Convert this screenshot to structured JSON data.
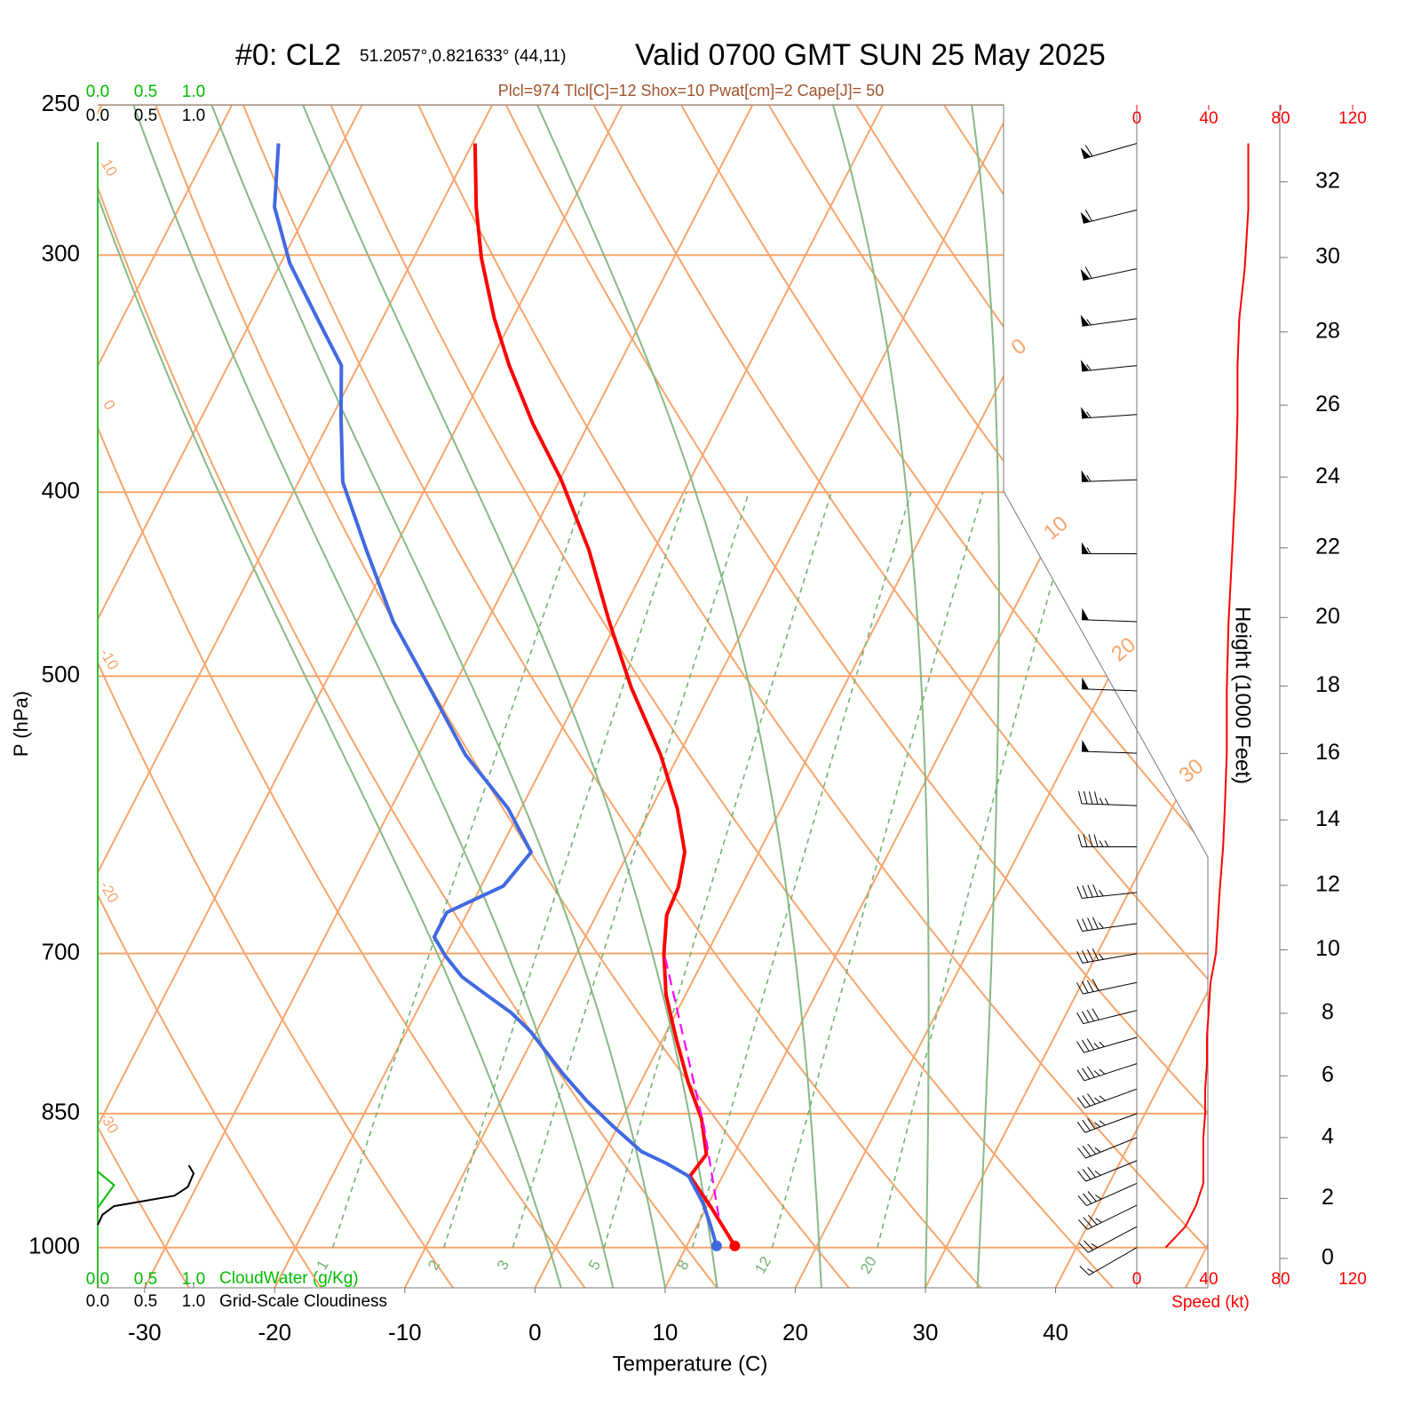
{
  "chart_data": {
    "type": "skewt",
    "title": "#0: CL2",
    "location": "51.2057°,0.821633° (44,11)",
    "valid": "Valid 0700 GMT SUN 25 May 2025",
    "stats": "Plcl=974 Tlcl[C]=12 Shox=10 Pwat[cm]=2 Cape[J]= 50",
    "xlabel": "Temperature (C)",
    "ylabel": "P (hPa)",
    "xlim": [
      -33.6,
      51.7
    ],
    "ylim": [
      1050,
      250
    ],
    "xticks": [
      -30,
      -20,
      -10,
      0,
      10,
      20,
      30,
      40
    ],
    "yticks": [
      250,
      300,
      400,
      500,
      700,
      850,
      1000
    ],
    "isotherms": [
      -80,
      -70,
      -60,
      -50,
      -40,
      -30,
      -20,
      -10,
      0,
      10,
      20,
      30,
      40,
      50
    ],
    "isotherm_labels": [
      0,
      10,
      20,
      30
    ],
    "dry_adiabats": [
      -40,
      -30,
      -20,
      -10,
      0,
      10,
      20,
      30,
      40,
      50,
      60,
      70,
      80,
      90,
      100,
      110,
      120
    ],
    "moist_adiabats": [
      2,
      6,
      10,
      14,
      22,
      30,
      34
    ],
    "mixing_ratios": [
      1,
      2,
      3,
      5,
      8,
      12,
      20
    ],
    "series": [
      {
        "color": "#ff0000",
        "surface_marker": true,
        "pressure": [
          262,
          283,
          301,
          324,
          343,
          368,
          394,
          429,
          468,
          507,
          550,
          587,
          619,
          646,
          668,
          700,
          736,
          776,
          819,
          855,
          893,
          917,
          953,
          998
        ],
        "values": [
          -49.8,
          -47.2,
          -44.8,
          -41.4,
          -38.4,
          -34.3,
          -29.9,
          -25.0,
          -20.6,
          -16.3,
          -11.4,
          -8.0,
          -5.7,
          -4.8,
          -4.6,
          -3.3,
          -1.5,
          1.0,
          3.7,
          6.1,
          7.9,
          7.5,
          10.4,
          13.7
        ]
      },
      {
        "color": "#4169e1",
        "surface_marker": true,
        "pressure": [
          262,
          283,
          303,
          324,
          343,
          365,
          395,
          429,
          468,
          507,
          550,
          587,
          619,
          645,
          666,
          686,
          702,
          720,
          736,
          752,
          770,
          810,
          837,
          863,
          890,
          903,
          917,
          948,
          973,
          998
        ],
        "values": [
          -64.9,
          -62.7,
          -59.3,
          -55.0,
          -51.3,
          -49.3,
          -46.6,
          -42.1,
          -37.2,
          -31.8,
          -26.4,
          -21.0,
          -17.5,
          -18.3,
          -21.6,
          -21.6,
          -20.0,
          -17.9,
          -15.3,
          -12.7,
          -10.4,
          -6.3,
          -3.4,
          -0.4,
          2.8,
          5.2,
          7.4,
          9.6,
          11.0,
          12.3
        ]
      },
      {
        "color": "#ff00ff",
        "dashed": true,
        "pressure": [
          704,
          865,
          963
        ],
        "values": [
          -3.0,
          6.7,
          11.3
        ]
      }
    ],
    "wind": {
      "xlabel": "Speed (kt)",
      "color": "#ff0000",
      "xlim": [
        0,
        120
      ],
      "xticks": [
        0,
        40,
        80,
        120
      ],
      "pressure": [
        262,
        284,
        305,
        324,
        343,
        364,
        394,
        431,
        468,
        509,
        549,
        585,
        615,
        650,
        675,
        700,
        725,
        750,
        775,
        800,
        825,
        850,
        875,
        900,
        925,
        950,
        975,
        1000
      ],
      "direction": [
        254,
        256,
        258,
        262,
        264,
        266,
        268,
        270,
        272,
        272,
        272,
        272,
        270,
        264,
        262,
        260,
        258,
        256,
        254,
        252,
        250,
        250,
        248,
        248,
        246,
        244,
        242,
        240
      ],
      "speed": [
        62,
        62,
        60,
        57,
        56,
        56,
        55,
        53,
        51,
        50,
        50,
        49,
        48,
        46,
        45,
        44,
        41,
        40,
        39,
        39,
        38,
        38,
        37,
        37,
        37,
        33,
        27,
        16
      ]
    },
    "height": {
      "label": "Height (1000 Feet)",
      "ticks": [
        0,
        2,
        4,
        6,
        8,
        10,
        12,
        14,
        16,
        18,
        20,
        22,
        24,
        26,
        28,
        30,
        32
      ]
    },
    "cloud": {
      "xlim": [
        0,
        1
      ],
      "xticks": [
        {
          "value": 0,
          "label": "0.0"
        },
        {
          "value": 0.5,
          "label": "0.5"
        },
        {
          "value": 1,
          "label": "1.0"
        }
      ],
      "water": {
        "label": "CloudWater (g/Kg)",
        "color": "#00bb00",
        "pressure": [
          912,
          927,
          953
        ],
        "values": [
          0,
          0.17,
          0
        ]
      },
      "cover": {
        "label": "Grid-Scale Cloudiness",
        "color": "#000000",
        "pressure": [
          905,
          914,
          929,
          939,
          951,
          961,
          973
        ],
        "values": [
          0.95,
          1.0,
          0.94,
          0.8,
          0.17,
          0.05,
          0
        ]
      }
    }
  }
}
